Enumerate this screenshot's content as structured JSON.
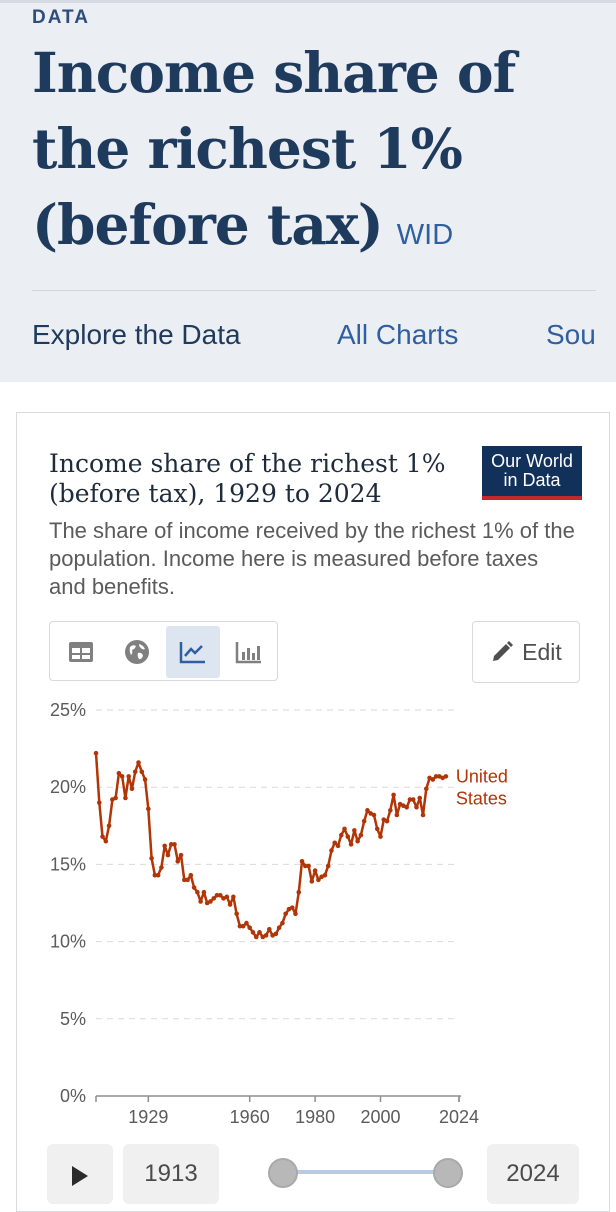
{
  "header": {
    "kicker": "DATA",
    "title": "Income share of the richest 1% (before tax)",
    "source": "WID"
  },
  "nav": [
    {
      "label": "Explore the Data",
      "active": true
    },
    {
      "label": "All Charts",
      "active": false
    },
    {
      "label": "Sou",
      "active": false
    }
  ],
  "chart_card": {
    "title": "Income share of the richest 1% (before tax), 1929 to 2024",
    "subtitle": "The share of income received by the richest 1% of the population. Income here is measured before taxes and benefits.",
    "logo_line1": "Our World",
    "logo_line2": "in Data",
    "edit_label": "Edit",
    "tabs": [
      {
        "icon": "table-icon",
        "active": false
      },
      {
        "icon": "globe-icon",
        "active": false
      },
      {
        "icon": "line-chart-icon",
        "active": true
      },
      {
        "icon": "bar-chart-icon",
        "active": false
      }
    ]
  },
  "timeline": {
    "start_year": "1913",
    "end_year": "2024",
    "selected_start": 0.0,
    "selected_end": 1.0
  },
  "colors": {
    "series": "#b13507",
    "header_bg": "#ebeef3",
    "title": "#1e3a5c",
    "logo_bg": "#11315a",
    "logo_bar": "#c2272d"
  },
  "chart_data": {
    "type": "line",
    "title": "Income share of the richest 1% (before tax), 1929 to 2024",
    "subtitle": "The share of income received by the richest 1% of the population. Income here is measured before taxes and benefits.",
    "xlabel": "",
    "ylabel": "",
    "x_ticks": [
      "1929",
      "1960",
      "1980",
      "2000",
      "2024"
    ],
    "x_tick_values": [
      1929,
      1960,
      1980,
      2000,
      2024
    ],
    "y_ticks": [
      "0%",
      "5%",
      "10%",
      "15%",
      "20%",
      "25%"
    ],
    "y_tick_values": [
      0,
      5,
      10,
      15,
      20,
      25
    ],
    "xlim": [
      1913,
      2024
    ],
    "ylim": [
      0,
      25
    ],
    "grid": true,
    "series": [
      {
        "name": "United States",
        "color": "#b13507",
        "points": [
          [
            1913,
            22.2
          ],
          [
            1914,
            19.0
          ],
          [
            1915,
            16.8
          ],
          [
            1916,
            16.5
          ],
          [
            1917,
            17.5
          ],
          [
            1918,
            19.2
          ],
          [
            1919,
            19.3
          ],
          [
            1920,
            20.9
          ],
          [
            1921,
            20.7
          ],
          [
            1922,
            19.3
          ],
          [
            1923,
            20.7
          ],
          [
            1924,
            19.9
          ],
          [
            1925,
            21.0
          ],
          [
            1926,
            21.6
          ],
          [
            1927,
            21.0
          ],
          [
            1928,
            20.5
          ],
          [
            1929,
            18.6
          ],
          [
            1930,
            15.4
          ],
          [
            1931,
            14.3
          ],
          [
            1932,
            14.3
          ],
          [
            1933,
            14.8
          ],
          [
            1934,
            16.2
          ],
          [
            1935,
            15.6
          ],
          [
            1936,
            16.3
          ],
          [
            1937,
            16.3
          ],
          [
            1938,
            15.2
          ],
          [
            1939,
            15.6
          ],
          [
            1940,
            14.0
          ],
          [
            1941,
            14.0
          ],
          [
            1942,
            14.3
          ],
          [
            1943,
            13.5
          ],
          [
            1944,
            13.2
          ],
          [
            1945,
            12.6
          ],
          [
            1946,
            13.2
          ],
          [
            1947,
            12.5
          ],
          [
            1948,
            12.6
          ],
          [
            1949,
            12.8
          ],
          [
            1950,
            13.0
          ],
          [
            1951,
            13.0
          ],
          [
            1952,
            12.8
          ],
          [
            1953,
            12.9
          ],
          [
            1954,
            12.4
          ],
          [
            1955,
            12.9
          ],
          [
            1956,
            11.8
          ],
          [
            1957,
            11.0
          ],
          [
            1958,
            11.0
          ],
          [
            1959,
            11.2
          ],
          [
            1960,
            10.9
          ],
          [
            1961,
            10.6
          ],
          [
            1962,
            10.3
          ],
          [
            1963,
            10.6
          ],
          [
            1964,
            10.3
          ],
          [
            1965,
            10.4
          ],
          [
            1966,
            10.8
          ],
          [
            1967,
            10.4
          ],
          [
            1968,
            10.5
          ],
          [
            1969,
            10.9
          ],
          [
            1970,
            11.2
          ],
          [
            1971,
            11.8
          ],
          [
            1972,
            12.1
          ],
          [
            1973,
            12.2
          ],
          [
            1974,
            11.8
          ],
          [
            1975,
            13.2
          ],
          [
            1976,
            15.2
          ],
          [
            1977,
            14.9
          ],
          [
            1978,
            14.9
          ],
          [
            1979,
            13.9
          ],
          [
            1980,
            14.6
          ],
          [
            1981,
            14.0
          ],
          [
            1982,
            14.2
          ],
          [
            1983,
            14.3
          ],
          [
            1984,
            14.9
          ],
          [
            1985,
            15.9
          ],
          [
            1986,
            16.4
          ],
          [
            1987,
            16.2
          ],
          [
            1988,
            16.9
          ],
          [
            1989,
            17.3
          ],
          [
            1990,
            16.8
          ],
          [
            1991,
            16.3
          ],
          [
            1992,
            17.2
          ],
          [
            1993,
            16.5
          ],
          [
            1994,
            16.9
          ],
          [
            1995,
            17.8
          ],
          [
            1996,
            18.5
          ],
          [
            1997,
            18.3
          ],
          [
            1998,
            18.2
          ],
          [
            1999,
            17.3
          ],
          [
            2000,
            16.8
          ],
          [
            2001,
            17.9
          ],
          [
            2002,
            17.8
          ],
          [
            2003,
            18.5
          ],
          [
            2004,
            19.5
          ],
          [
            2005,
            18.2
          ],
          [
            2006,
            18.9
          ],
          [
            2007,
            18.8
          ],
          [
            2008,
            18.7
          ],
          [
            2009,
            19.2
          ],
          [
            2010,
            19.2
          ],
          [
            2011,
            18.7
          ],
          [
            2012,
            19.3
          ],
          [
            2013,
            18.2
          ],
          [
            2014,
            19.9
          ],
          [
            2015,
            20.6
          ],
          [
            2016,
            20.5
          ],
          [
            2017,
            20.7
          ],
          [
            2018,
            20.7
          ],
          [
            2019,
            20.6
          ],
          [
            2020,
            20.7
          ]
        ]
      }
    ],
    "series_label": "United States",
    "series_label_line1": "United",
    "series_label_line2": "States"
  }
}
